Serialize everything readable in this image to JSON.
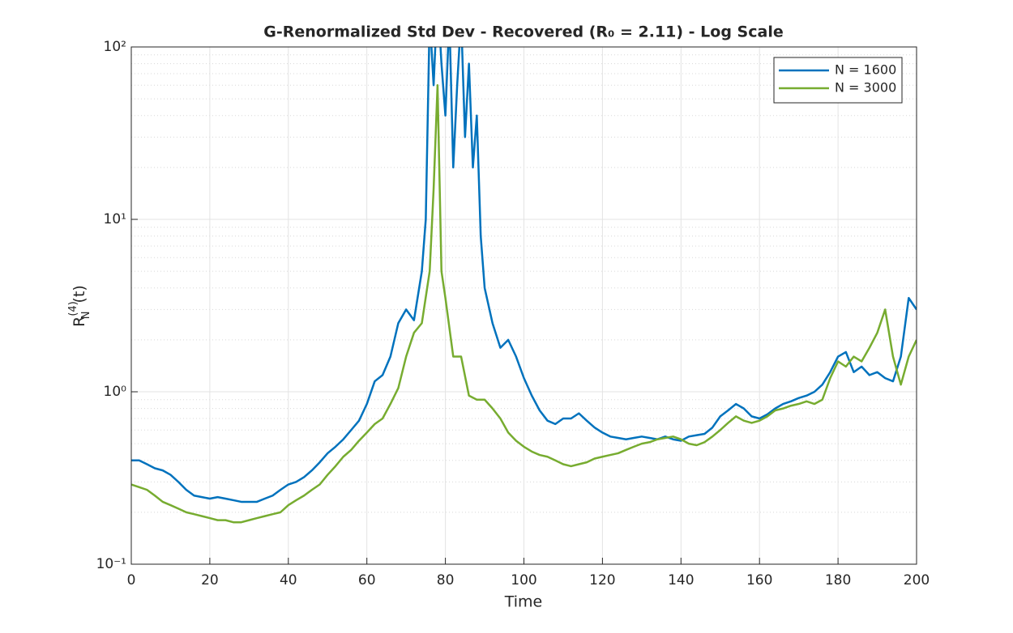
{
  "chart_data": {
    "type": "line",
    "title": "G-Renormalized Std Dev - Recovered (R₀ = 2.11) - Log Scale",
    "xlabel": "Time",
    "ylabel": {
      "base": "R",
      "sub": "N",
      "sup": "(4)",
      "tail": "(t)"
    },
    "log_y": true,
    "grid": true,
    "minor_grid": true,
    "legend": "northeast",
    "xlim": [
      0,
      200
    ],
    "xticks": [
      0,
      20,
      40,
      60,
      80,
      100,
      120,
      140,
      160,
      180,
      200
    ],
    "ylim": [
      0.1,
      100
    ],
    "yticks": [
      {
        "value": 0.1,
        "label": "10⁻¹"
      },
      {
        "value": 1,
        "label": "10⁰"
      },
      {
        "value": 10,
        "label": "10¹"
      },
      {
        "value": 100,
        "label": "10²"
      }
    ],
    "series": [
      {
        "name": "N = 1600",
        "color": "#0072bd",
        "x": [
          0,
          2,
          4,
          6,
          8,
          10,
          12,
          14,
          16,
          18,
          20,
          22,
          24,
          26,
          28,
          30,
          32,
          34,
          36,
          38,
          40,
          42,
          44,
          46,
          48,
          50,
          52,
          54,
          56,
          58,
          60,
          62,
          64,
          66,
          68,
          70,
          72,
          74,
          75,
          76,
          77,
          78,
          79,
          80,
          81,
          82,
          83,
          84,
          85,
          86,
          87,
          88,
          89,
          90,
          92,
          94,
          96,
          98,
          100,
          102,
          104,
          106,
          108,
          110,
          112,
          114,
          116,
          118,
          120,
          122,
          124,
          126,
          128,
          130,
          132,
          134,
          136,
          138,
          140,
          142,
          144,
          146,
          148,
          150,
          152,
          154,
          156,
          158,
          160,
          162,
          164,
          166,
          168,
          170,
          172,
          174,
          176,
          178,
          180,
          182,
          184,
          186,
          188,
          190,
          192,
          194,
          196,
          198,
          200
        ],
        "values": [
          0.4,
          0.4,
          0.38,
          0.36,
          0.35,
          0.33,
          0.3,
          0.27,
          0.25,
          0.245,
          0.24,
          0.245,
          0.24,
          0.235,
          0.23,
          0.23,
          0.23,
          0.24,
          0.25,
          0.27,
          0.29,
          0.3,
          0.32,
          0.35,
          0.39,
          0.44,
          0.48,
          0.53,
          0.6,
          0.68,
          0.85,
          1.15,
          1.25,
          1.6,
          2.5,
          3.0,
          2.6,
          5,
          10,
          150,
          60,
          200,
          80,
          40,
          150,
          20,
          60,
          150,
          30,
          80,
          20,
          40,
          8,
          4,
          2.5,
          1.8,
          2.0,
          1.6,
          1.2,
          0.95,
          0.78,
          0.68,
          0.65,
          0.7,
          0.7,
          0.75,
          0.68,
          0.62,
          0.58,
          0.55,
          0.54,
          0.53,
          0.54,
          0.55,
          0.54,
          0.53,
          0.55,
          0.53,
          0.52,
          0.55,
          0.56,
          0.57,
          0.62,
          0.72,
          0.78,
          0.85,
          0.8,
          0.72,
          0.7,
          0.74,
          0.8,
          0.85,
          0.88,
          0.92,
          0.95,
          1.0,
          1.1,
          1.3,
          1.6,
          1.7,
          1.3,
          1.4,
          1.25,
          1.3,
          1.2,
          1.15,
          1.6,
          3.5,
          3.0
        ]
      },
      {
        "name": "N = 3000",
        "color": "#77ac30",
        "x": [
          0,
          2,
          4,
          6,
          8,
          10,
          12,
          14,
          16,
          18,
          20,
          22,
          24,
          26,
          28,
          30,
          32,
          34,
          36,
          38,
          40,
          42,
          44,
          46,
          48,
          50,
          52,
          54,
          56,
          58,
          60,
          62,
          64,
          66,
          68,
          70,
          72,
          74,
          76,
          77,
          78,
          79,
          80,
          82,
          84,
          86,
          88,
          90,
          92,
          94,
          96,
          98,
          100,
          102,
          104,
          106,
          108,
          110,
          112,
          114,
          116,
          118,
          120,
          122,
          124,
          126,
          128,
          130,
          132,
          134,
          136,
          138,
          140,
          142,
          144,
          146,
          148,
          150,
          152,
          154,
          156,
          158,
          160,
          162,
          164,
          166,
          168,
          170,
          172,
          174,
          176,
          178,
          180,
          182,
          184,
          186,
          188,
          190,
          192,
          194,
          196,
          198,
          200
        ],
        "values": [
          0.29,
          0.28,
          0.27,
          0.25,
          0.23,
          0.22,
          0.21,
          0.2,
          0.195,
          0.19,
          0.185,
          0.18,
          0.18,
          0.175,
          0.175,
          0.18,
          0.185,
          0.19,
          0.195,
          0.2,
          0.22,
          0.235,
          0.25,
          0.27,
          0.29,
          0.33,
          0.37,
          0.42,
          0.46,
          0.52,
          0.58,
          0.65,
          0.7,
          0.85,
          1.05,
          1.6,
          2.2,
          2.5,
          5,
          15,
          60,
          5,
          3.5,
          1.6,
          1.6,
          0.95,
          0.9,
          0.9,
          0.8,
          0.7,
          0.58,
          0.52,
          0.48,
          0.45,
          0.43,
          0.42,
          0.4,
          0.38,
          0.37,
          0.38,
          0.39,
          0.41,
          0.42,
          0.43,
          0.44,
          0.46,
          0.48,
          0.5,
          0.51,
          0.53,
          0.54,
          0.55,
          0.53,
          0.5,
          0.49,
          0.51,
          0.55,
          0.6,
          0.66,
          0.72,
          0.68,
          0.66,
          0.68,
          0.72,
          0.78,
          0.8,
          0.83,
          0.85,
          0.88,
          0.85,
          0.9,
          1.2,
          1.5,
          1.4,
          1.6,
          1.5,
          1.8,
          2.2,
          3.0,
          1.6,
          1.1,
          1.6,
          2.0
        ]
      }
    ]
  }
}
